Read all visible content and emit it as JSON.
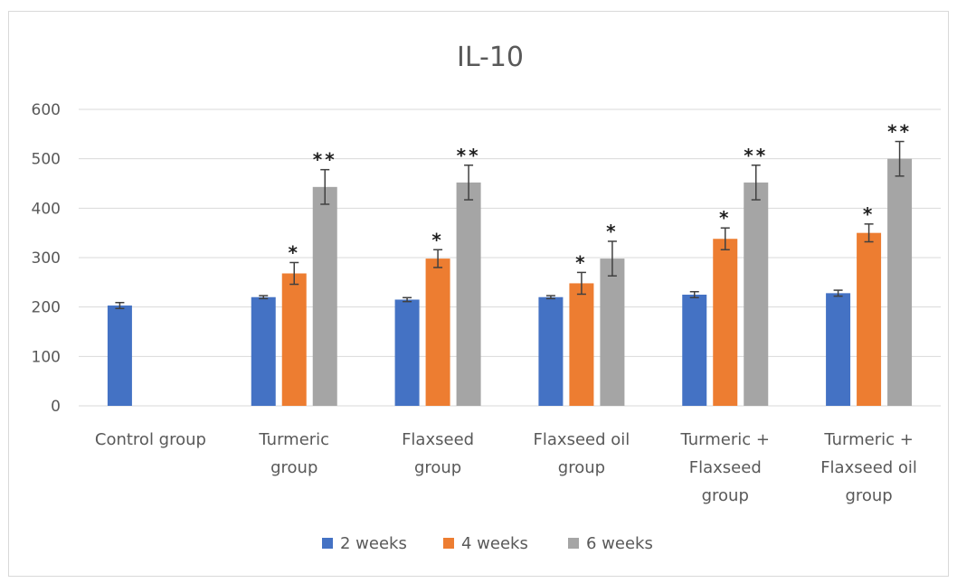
{
  "chart_data": {
    "type": "bar",
    "title": "IL-10",
    "categories": [
      [
        "Control group"
      ],
      [
        "Turmeric",
        "group"
      ],
      [
        "Flaxseed",
        "group"
      ],
      [
        "Flaxseed oil",
        "group"
      ],
      [
        "Turmeric +",
        "Flaxseed",
        "group"
      ],
      [
        "Turmeric +",
        "Flaxseed oil",
        "group"
      ]
    ],
    "series": [
      {
        "name": "2 weeks",
        "color": "#4472c4",
        "values": [
          203,
          220,
          215,
          220,
          225,
          228
        ],
        "errors": [
          6,
          3,
          4,
          3,
          6,
          6
        ],
        "significance": [
          "",
          "",
          "",
          "",
          "",
          ""
        ]
      },
      {
        "name": "4 weeks",
        "color": "#ed7d31",
        "values": [
          null,
          268,
          298,
          248,
          338,
          350
        ],
        "errors": [
          null,
          22,
          18,
          22,
          22,
          18
        ],
        "significance": [
          "",
          "*",
          "*",
          "*",
          "*",
          "*"
        ]
      },
      {
        "name": "6 weeks",
        "color": "#a5a5a5",
        "values": [
          null,
          443,
          452,
          298,
          452,
          500
        ],
        "errors": [
          null,
          35,
          35,
          35,
          35,
          35
        ],
        "significance": [
          "",
          "**",
          "**",
          "*",
          "**",
          "**"
        ]
      }
    ],
    "ylim": [
      0,
      600
    ],
    "yticks": [
      0,
      100,
      200,
      300,
      400,
      500,
      600
    ],
    "grid": true,
    "legend_position": "bottom"
  }
}
